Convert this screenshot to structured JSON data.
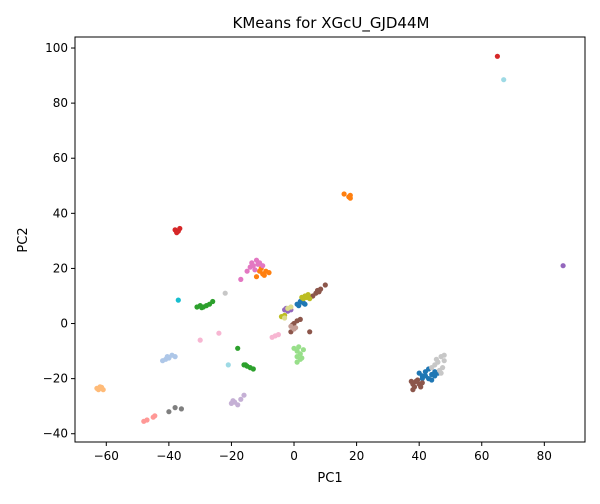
{
  "chart_data": {
    "type": "scatter",
    "title": "KMeans for XGcU_GJD44M",
    "xlabel": "PC1",
    "ylabel": "PC2",
    "xlim": [
      -70,
      93
    ],
    "ylim": [
      -43,
      104
    ],
    "xticks": [
      -60,
      -40,
      -20,
      0,
      20,
      40,
      60,
      80
    ],
    "yticks": [
      -40,
      -20,
      0,
      20,
      40,
      60,
      80,
      100
    ],
    "grid": false,
    "legend": "none",
    "clusters": [
      {
        "color": "#1f77b4",
        "points": [
          [
            1,
            7
          ],
          [
            2,
            8
          ],
          [
            3,
            7.5
          ],
          [
            1.5,
            6.5
          ],
          [
            2.5,
            8.5
          ],
          [
            3.5,
            7
          ],
          [
            40,
            -18
          ],
          [
            41,
            -19
          ],
          [
            42,
            -17.5
          ],
          [
            43,
            -20
          ],
          [
            44,
            -18.5
          ],
          [
            45,
            -19
          ],
          [
            44,
            -20.5
          ],
          [
            42,
            -19
          ],
          [
            43,
            -16.5
          ],
          [
            46,
            -18
          ],
          [
            41,
            -20
          ],
          [
            45,
            -17.5
          ]
        ]
      },
      {
        "color": "#ff7f0e",
        "points": [
          [
            -12,
            17
          ],
          [
            -11,
            19
          ],
          [
            -10,
            18
          ],
          [
            -9,
            19
          ],
          [
            -8,
            18.5
          ],
          [
            -10.5,
            20
          ],
          [
            -9.5,
            17.5
          ],
          [
            16,
            47
          ],
          [
            17.5,
            46
          ],
          [
            18,
            45.5
          ],
          [
            18,
            46.5
          ]
        ]
      },
      {
        "color": "#2ca02c",
        "points": [
          [
            -31,
            6
          ],
          [
            -30,
            6.5
          ],
          [
            -29,
            6
          ],
          [
            -28,
            6.5
          ],
          [
            -27,
            7
          ],
          [
            -26,
            8
          ],
          [
            -29.5,
            5.8
          ],
          [
            -18,
            -9
          ],
          [
            -16,
            -15
          ],
          [
            -15,
            -15.5
          ],
          [
            -14,
            -16
          ],
          [
            -13,
            -16.5
          ],
          [
            -15.5,
            -15
          ]
        ]
      },
      {
        "color": "#d62728",
        "points": [
          [
            -38,
            34
          ],
          [
            -37,
            33.5
          ],
          [
            -36.5,
            34.5
          ],
          [
            -37.5,
            33
          ],
          [
            65,
            97
          ]
        ]
      },
      {
        "color": "#9467bd",
        "points": [
          [
            -3,
            5
          ],
          [
            -2,
            4.5
          ],
          [
            -1,
            5
          ],
          [
            -2.5,
            5.5
          ],
          [
            86,
            21
          ]
        ]
      },
      {
        "color": "#8c564b",
        "points": [
          [
            -1,
            -3
          ],
          [
            0,
            0
          ],
          [
            1,
            1
          ],
          [
            2,
            1.5
          ],
          [
            -0.5,
            -0.5
          ],
          [
            5,
            -3
          ],
          [
            6,
            10
          ],
          [
            7,
            11
          ],
          [
            7.5,
            12
          ],
          [
            8,
            11.5
          ],
          [
            8.5,
            12.5
          ],
          [
            10,
            14
          ],
          [
            38,
            -22
          ],
          [
            39,
            -21
          ],
          [
            38.5,
            -23
          ],
          [
            40,
            -22
          ],
          [
            41,
            -21.5
          ],
          [
            39.5,
            -20.5
          ],
          [
            38,
            -24
          ],
          [
            40.5,
            -23
          ],
          [
            37.5,
            -21
          ]
        ]
      },
      {
        "color": "#e377c2",
        "points": [
          [
            -17,
            16
          ],
          [
            -15,
            19
          ],
          [
            -14,
            20.5
          ],
          [
            -13,
            21
          ],
          [
            -12,
            23
          ],
          [
            -11,
            22
          ],
          [
            -10,
            21
          ],
          [
            -12.5,
            19.5
          ],
          [
            -11.5,
            21.5
          ],
          [
            -13.5,
            22
          ]
        ]
      },
      {
        "color": "#7f7f7f",
        "points": [
          [
            -40,
            -32
          ],
          [
            -38,
            -30.5
          ],
          [
            -36,
            -31
          ]
        ]
      },
      {
        "color": "#bcbd22",
        "points": [
          [
            -4,
            2.5
          ],
          [
            -3,
            3
          ],
          [
            3,
            9
          ],
          [
            3.5,
            10
          ],
          [
            4,
            9.5
          ],
          [
            4.5,
            10.5
          ],
          [
            5,
            9
          ],
          [
            2.5,
            9.5
          ]
        ]
      },
      {
        "color": "#17becf",
        "points": [
          [
            -37,
            8.5
          ]
        ]
      },
      {
        "color": "#aec7e8",
        "points": [
          [
            -42,
            -13.5
          ],
          [
            -41,
            -13
          ],
          [
            -40,
            -12.5
          ],
          [
            -39,
            -11.5
          ],
          [
            -38,
            -12
          ],
          [
            -40.5,
            -12
          ]
        ]
      },
      {
        "color": "#ffbb78",
        "points": [
          [
            -63,
            -23.5
          ],
          [
            -62,
            -23
          ],
          [
            -61,
            -24
          ],
          [
            -62.5,
            -24
          ],
          [
            -61.5,
            -23.2
          ]
        ]
      },
      {
        "color": "#98df8a",
        "points": [
          [
            0,
            -9
          ],
          [
            1,
            -10
          ],
          [
            1.5,
            -8.5
          ],
          [
            2,
            -11
          ],
          [
            1,
            -12
          ],
          [
            2.5,
            -12.5
          ],
          [
            3,
            -9.5
          ],
          [
            2,
            -13
          ],
          [
            1,
            -14
          ]
        ]
      },
      {
        "color": "#ff9896",
        "points": [
          [
            -48,
            -35.5
          ],
          [
            -47,
            -35
          ],
          [
            -45,
            -34
          ],
          [
            -44.5,
            -33.5
          ]
        ]
      },
      {
        "color": "#c5b0d5",
        "points": [
          [
            -20,
            -29
          ],
          [
            -19,
            -28.5
          ],
          [
            -18,
            -29.5
          ],
          [
            -17,
            -27.5
          ],
          [
            -16,
            -26
          ],
          [
            -19.5,
            -28
          ]
        ]
      },
      {
        "color": "#c49c94",
        "points": [
          [
            -1,
            -1
          ],
          [
            0,
            -2
          ],
          [
            0.5,
            -1.5
          ]
        ]
      },
      {
        "color": "#f7b6d2",
        "points": [
          [
            -30,
            -6
          ],
          [
            -24,
            -3.5
          ],
          [
            -7,
            -5
          ],
          [
            -6,
            -4.5
          ],
          [
            -5,
            -4
          ]
        ]
      },
      {
        "color": "#c7c7c7",
        "points": [
          [
            -22,
            11
          ],
          [
            44,
            -16
          ],
          [
            45,
            -15
          ],
          [
            46,
            -14
          ],
          [
            47,
            -12
          ],
          [
            48,
            -13.5
          ],
          [
            46.5,
            -17
          ],
          [
            47.5,
            -16
          ],
          [
            45.5,
            -13
          ],
          [
            48,
            -11.5
          ],
          [
            47,
            -18
          ]
        ]
      },
      {
        "color": "#dbdb8d",
        "points": [
          [
            -2,
            5.5
          ],
          [
            -1,
            6
          ],
          [
            -3,
            2
          ]
        ]
      },
      {
        "color": "#9edae5",
        "points": [
          [
            -21,
            -15
          ],
          [
            67,
            88.5
          ]
        ]
      }
    ]
  }
}
